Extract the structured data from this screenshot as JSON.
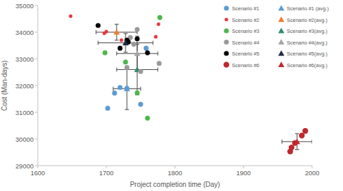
{
  "chart_data": {
    "type": "scatter",
    "x_label": "Project completion time (Day)",
    "y_label": "Cost (Man-days)",
    "xlim": [
      1600,
      2000
    ],
    "xticks": [
      1600,
      1700,
      1800,
      1900,
      2000
    ],
    "ylim": [
      29000,
      35000
    ],
    "yticks": [
      29000,
      30000,
      31000,
      32000,
      33000,
      34000,
      35000
    ],
    "grid": false,
    "legend": "top-right",
    "series": [
      {
        "name": "Scenario #1",
        "color": "#5b9bd5",
        "marker": "circle",
        "x": [
          1702,
          1712,
          1720,
          1730,
          1750,
          1758
        ],
        "values": [
          31150,
          31720,
          31930,
          31900,
          31300,
          33400
        ]
      },
      {
        "name": "Scenario #1 (avg.)",
        "color": "#5b9bd5",
        "marker": "triangle",
        "x": [
          1730
        ],
        "values": [
          31880
        ],
        "x_errors": [
          20
        ],
        "y_errors": [
          780
        ]
      },
      {
        "name": "Scenario #2",
        "color": "#e8383d",
        "marker": "small-circle",
        "x": [
          1648,
          1697,
          1700,
          1722,
          1772,
          1776
        ],
        "values": [
          34600,
          33960,
          34020,
          33700,
          33830,
          34300
        ]
      },
      {
        "name": "Scenario #2(avg.)",
        "color": "#ed7d31",
        "marker": "triangle",
        "x": [
          1715
        ],
        "values": [
          34000
        ],
        "x_errors": [
          30
        ],
        "y_errors": [
          300
        ]
      },
      {
        "name": "Scenario #3",
        "color": "#4cb74a",
        "marker": "circle",
        "x": [
          1698,
          1728,
          1745,
          1760,
          1778
        ],
        "values": [
          33230,
          32880,
          31730,
          30780,
          34550
        ]
      },
      {
        "name": "Scenario #3(avg.)",
        "color": "#2e8b6a",
        "marker": "triangle",
        "x": [
          1745
        ],
        "values": [
          32600
        ],
        "x_errors": [
          30
        ],
        "y_errors": [
          950
        ]
      },
      {
        "name": "Scenario #4",
        "color": "#999999",
        "marker": "circle",
        "x": [
          1730,
          1735,
          1740,
          1745,
          1750,
          1777
        ],
        "values": [
          32680,
          33800,
          33550,
          34100,
          32530,
          32830
        ]
      },
      {
        "name": "Scenario #4(avg.)",
        "color": "#a5a5a5",
        "marker": "triangle",
        "x": [
          1745
        ],
        "values": [
          33200
        ],
        "x_errors": [
          30
        ],
        "y_errors": [
          650
        ]
      },
      {
        "name": "Scenario #5",
        "color": "#000000",
        "marker": "circle",
        "x": [
          1688,
          1720,
          1730,
          1732,
          1745,
          1760
        ],
        "values": [
          34250,
          33400,
          33700,
          33630,
          33750,
          33230
        ]
      },
      {
        "name": "Scenario #5(avg.)",
        "color": "#1f2a44",
        "marker": "triangle",
        "x": [
          1728
        ],
        "values": [
          33600
        ],
        "x_errors": [
          40
        ],
        "y_errors": [
          350
        ]
      },
      {
        "name": "Scenario #6",
        "color": "#c0282d",
        "marker": "large-circle",
        "x": [
          1968,
          1970,
          1975,
          1985,
          1990
        ],
        "values": [
          29530,
          29680,
          29850,
          30130,
          30300
        ]
      },
      {
        "name": "Scenario #6(avg.)",
        "color": "#c0282d",
        "marker": "triangle",
        "x": [
          1978
        ],
        "values": [
          29900
        ],
        "x_errors": [
          22
        ],
        "y_errors": [
          300
        ]
      }
    ]
  }
}
